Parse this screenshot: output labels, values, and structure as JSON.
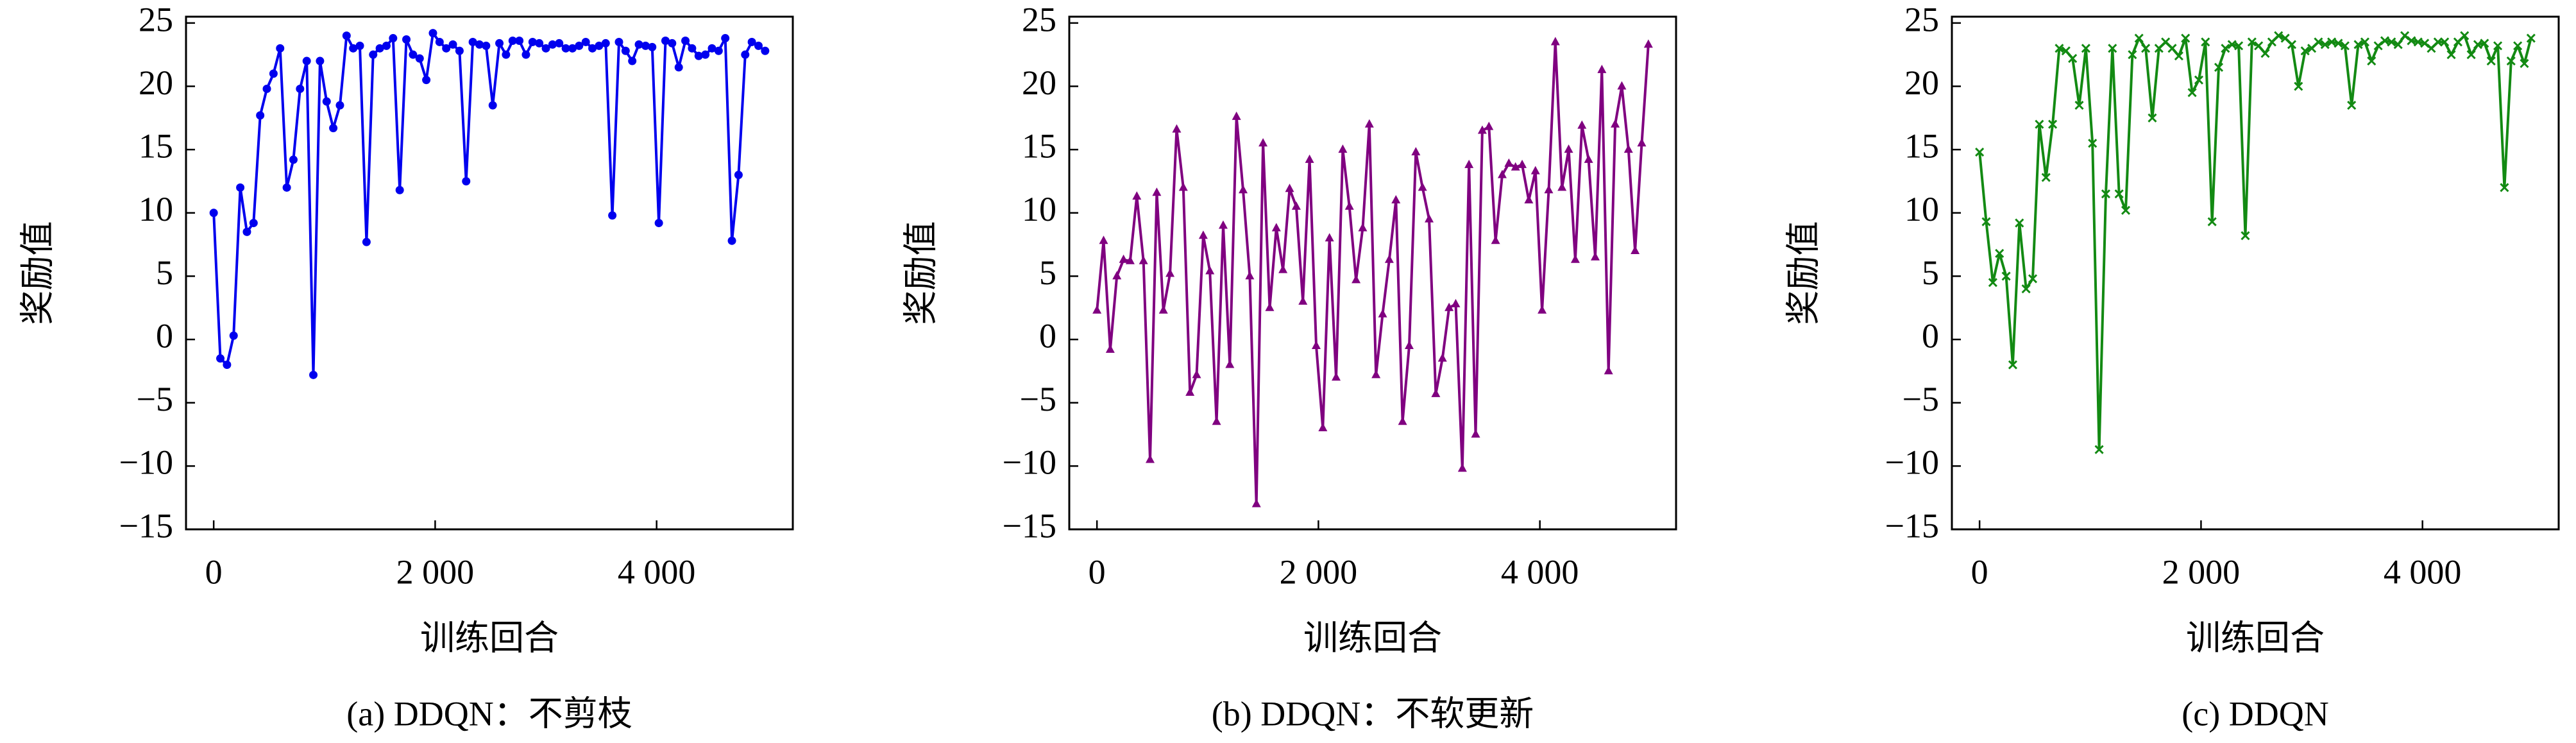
{
  "chart_data": [
    {
      "type": "line",
      "marker": "circle",
      "color": "#0000ee",
      "caption": "(a) DDQN：不剪枝",
      "xlabel": "训练回合",
      "ylabel": "奖励值",
      "xlim": [
        -250,
        5230
      ],
      "ylim": [
        -15,
        25.5
      ],
      "xticks": [
        0,
        {
          "value": 2000,
          "label": "2 000"
        },
        {
          "value": 4000,
          "label": "4 000"
        }
      ],
      "yticks": [
        {
          "value": -15,
          "label": "−15"
        },
        {
          "value": -10,
          "label": "−10"
        },
        {
          "value": -5,
          "label": "−5"
        },
        0,
        5,
        10,
        15,
        20,
        25
      ],
      "x": [
        0,
        60,
        120,
        180,
        240,
        300,
        360,
        420,
        480,
        540,
        600,
        660,
        720,
        780,
        840,
        900,
        960,
        1020,
        1080,
        1140,
        1200,
        1260,
        1320,
        1380,
        1440,
        1500,
        1560,
        1620,
        1680,
        1740,
        1800,
        1860,
        1920,
        1980,
        2040,
        2100,
        2160,
        2220,
        2280,
        2340,
        2400,
        2460,
        2520,
        2580,
        2640,
        2700,
        2760,
        2820,
        2880,
        2940,
        3000,
        3060,
        3120,
        3180,
        3240,
        3300,
        3360,
        3420,
        3480,
        3540,
        3600,
        3660,
        3720,
        3780,
        3840,
        3900,
        3960,
        4020,
        4080,
        4140,
        4200,
        4260,
        4320,
        4380,
        4440,
        4500,
        4560,
        4620,
        4680,
        4740,
        4800,
        4860,
        4920,
        4980
      ],
      "values": [
        10,
        -1.5,
        -2,
        0.3,
        12,
        8.5,
        9.2,
        17.7,
        19.8,
        21,
        23,
        12,
        14.2,
        19.8,
        22,
        -2.8,
        22,
        18.8,
        16.7,
        18.5,
        24,
        23,
        23.2,
        7.7,
        22.5,
        23,
        23.2,
        23.8,
        11.8,
        23.7,
        22.5,
        22.2,
        20.5,
        24.2,
        23.5,
        23,
        23.3,
        22.8,
        12.5,
        23.5,
        23.3,
        23.2,
        18.5,
        23.4,
        22.5,
        23.6,
        23.6,
        22.5,
        23.5,
        23.4,
        23,
        23.3,
        23.4,
        23,
        23,
        23.2,
        23.5,
        23,
        23.2,
        23.4,
        9.8,
        23.5,
        22.8,
        22,
        23.3,
        23.2,
        23.1,
        9.2,
        23.6,
        23.4,
        21.5,
        23.6,
        23,
        22.4,
        22.5,
        23,
        22.8,
        23.8,
        7.8,
        13,
        22.5,
        23.5,
        23.2,
        22.8
      ]
    },
    {
      "type": "line",
      "marker": "triangle",
      "color": "#800080",
      "caption": "(b) DDQN：不软更新",
      "xlabel": "训练回合",
      "ylabel": "奖励值",
      "xlim": [
        -250,
        5230
      ],
      "ylim": [
        -15,
        25.5
      ],
      "xticks": [
        0,
        {
          "value": 2000,
          "label": "2 000"
        },
        {
          "value": 4000,
          "label": "4 000"
        }
      ],
      "yticks": [
        {
          "value": -15,
          "label": "−15"
        },
        {
          "value": -10,
          "label": "−10"
        },
        {
          "value": -5,
          "label": "−5"
        },
        0,
        5,
        10,
        15,
        20,
        25
      ],
      "x": [
        0,
        60,
        120,
        180,
        240,
        300,
        360,
        420,
        480,
        540,
        600,
        660,
        720,
        780,
        840,
        900,
        960,
        1020,
        1080,
        1140,
        1200,
        1260,
        1320,
        1380,
        1440,
        1500,
        1560,
        1620,
        1680,
        1740,
        1800,
        1860,
        1920,
        1980,
        2040,
        2100,
        2160,
        2220,
        2280,
        2340,
        2400,
        2460,
        2520,
        2580,
        2640,
        2700,
        2760,
        2820,
        2880,
        2940,
        3000,
        3060,
        3120,
        3180,
        3240,
        3300,
        3360,
        3420,
        3480,
        3540,
        3600,
        3660,
        3720,
        3780,
        3840,
        3900,
        3960,
        4020,
        4080,
        4140,
        4200,
        4260,
        4320,
        4380,
        4440,
        4500,
        4560,
        4620,
        4680,
        4740,
        4800,
        4860,
        4920,
        4980
      ],
      "values": [
        2.3,
        7.8,
        -0.8,
        5,
        6.3,
        6.2,
        11.3,
        6.2,
        -9.5,
        11.6,
        2.3,
        5.2,
        16.6,
        12,
        -4.2,
        -2.8,
        8.2,
        5.4,
        -6.5,
        9,
        -2,
        17.6,
        11.8,
        5,
        -13,
        15.5,
        2.5,
        8.8,
        5.5,
        11.9,
        10.5,
        3,
        14.2,
        -0.5,
        -7,
        8,
        -3,
        15,
        10.5,
        4.7,
        8.8,
        17,
        -2.8,
        2,
        6.3,
        11,
        -6.5,
        -0.5,
        14.8,
        12,
        9.5,
        -4.3,
        -1.5,
        2.5,
        2.8,
        -10.2,
        13.8,
        -7.5,
        16.5,
        16.8,
        7.8,
        13,
        13.9,
        13.6,
        13.8,
        11,
        13.3,
        2.3,
        11.8,
        23.5,
        12,
        15,
        6.3,
        16.9,
        14.2,
        6.5,
        21.3,
        -2.5,
        17,
        20,
        15,
        7,
        15.5,
        23.3
      ]
    },
    {
      "type": "line",
      "marker": "x",
      "color": "#138a13",
      "caption": "(c) DDQN",
      "xlabel": "训练回合",
      "ylabel": "奖励值",
      "xlim": [
        -250,
        5230
      ],
      "ylim": [
        -15,
        25.5
      ],
      "xticks": [
        0,
        {
          "value": 2000,
          "label": "2 000"
        },
        {
          "value": 4000,
          "label": "4 000"
        }
      ],
      "yticks": [
        {
          "value": -15,
          "label": "−15"
        },
        {
          "value": -10,
          "label": "−10"
        },
        {
          "value": -5,
          "label": "−5"
        },
        0,
        5,
        10,
        15,
        20,
        25
      ],
      "x": [
        0,
        60,
        120,
        180,
        240,
        300,
        360,
        420,
        480,
        540,
        600,
        660,
        720,
        780,
        840,
        900,
        960,
        1020,
        1080,
        1140,
        1200,
        1260,
        1320,
        1380,
        1440,
        1500,
        1560,
        1620,
        1680,
        1740,
        1800,
        1860,
        1920,
        1980,
        2040,
        2100,
        2160,
        2220,
        2280,
        2340,
        2400,
        2460,
        2520,
        2580,
        2640,
        2700,
        2760,
        2820,
        2880,
        2940,
        3000,
        3060,
        3120,
        3180,
        3240,
        3300,
        3360,
        3420,
        3480,
        3540,
        3600,
        3660,
        3720,
        3780,
        3840,
        3900,
        3960,
        4020,
        4080,
        4140,
        4200,
        4260,
        4320,
        4380,
        4440,
        4500,
        4560,
        4620,
        4680,
        4740,
        4800,
        4860,
        4920,
        4980
      ],
      "values": [
        14.8,
        9.3,
        4.5,
        6.8,
        5,
        -2,
        9.2,
        4,
        4.8,
        17,
        12.8,
        17,
        23,
        22.8,
        22.2,
        18.5,
        23,
        15.5,
        -8.7,
        11.5,
        23,
        11.5,
        10.2,
        22.5,
        23.8,
        23,
        17.5,
        23,
        23.5,
        23,
        22.4,
        23.8,
        19.5,
        20.5,
        23.5,
        9.3,
        21.5,
        23,
        23.3,
        23.2,
        8.2,
        23.5,
        23.2,
        22.6,
        23.5,
        24,
        23.8,
        23.3,
        20,
        22.8,
        23,
        23.5,
        23.3,
        23.5,
        23.4,
        23.2,
        18.5,
        23.3,
        23.5,
        22,
        23.2,
        23.6,
        23.5,
        23.3,
        24,
        23.6,
        23.5,
        23.4,
        23,
        23.5,
        23.5,
        22.5,
        23.5,
        24,
        22.5,
        23.3,
        23.4,
        22,
        23.2,
        12,
        22,
        23.2,
        21.8,
        23.8
      ]
    }
  ]
}
